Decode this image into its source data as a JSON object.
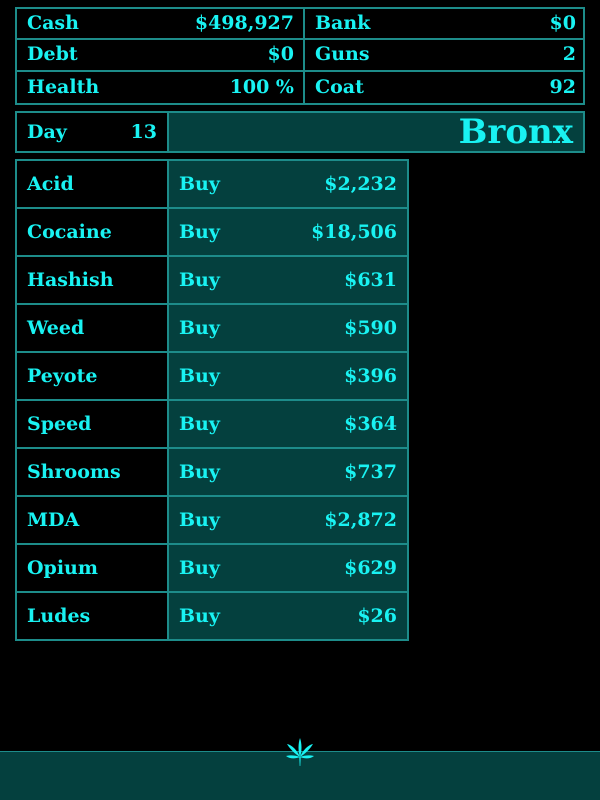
{
  "stats": {
    "cash": {
      "label": "Cash",
      "value": "$498,927"
    },
    "bank": {
      "label": "Bank",
      "value": "$0"
    },
    "debt": {
      "label": "Debt",
      "value": "$0"
    },
    "guns": {
      "label": "Guns",
      "value": "2"
    },
    "health": {
      "label": "Health",
      "value": "100 %"
    },
    "coat": {
      "label": "Coat",
      "value": "92"
    }
  },
  "day": {
    "label": "Day",
    "value": "13"
  },
  "location": "Bronx",
  "market": {
    "items": [
      {
        "name": "Acid",
        "action": "Buy",
        "price": "$2,232"
      },
      {
        "name": "Cocaine",
        "action": "Buy",
        "price": "$18,506"
      },
      {
        "name": "Hashish",
        "action": "Buy",
        "price": "$631"
      },
      {
        "name": "Weed",
        "action": "Buy",
        "price": "$590"
      },
      {
        "name": "Peyote",
        "action": "Buy",
        "price": "$396"
      },
      {
        "name": "Speed",
        "action": "Buy",
        "price": "$364"
      },
      {
        "name": "Shrooms",
        "action": "Buy",
        "price": "$737"
      },
      {
        "name": "MDA",
        "action": "Buy",
        "price": "$2,872"
      },
      {
        "name": "Opium",
        "action": "Buy",
        "price": "$629"
      },
      {
        "name": "Ludes",
        "action": "Buy",
        "price": "$26"
      }
    ]
  },
  "icons": {
    "bottom": "cannabis-leaf-icon"
  },
  "colors": {
    "text": "#19f2f2",
    "border": "#1d8c8a",
    "panel": "#04403e",
    "background": "#000000"
  }
}
